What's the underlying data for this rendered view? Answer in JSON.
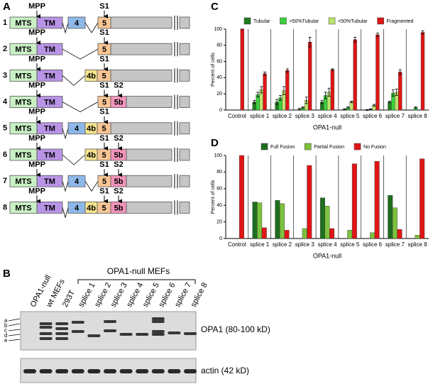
{
  "panel_a": {
    "panel_label": "A",
    "rows": [
      {
        "number": "1",
        "exons": [
          {
            "label": "MTS",
            "color": "#c9f0c4"
          },
          {
            "label": "TM",
            "color": "#b994e6"
          },
          {
            "label": "4",
            "color": "#8fb8ea"
          },
          {
            "label": "5",
            "color": "#f7c594"
          }
        ],
        "sites": [
          "MPP",
          "S1"
        ]
      },
      {
        "number": "2",
        "exons": [
          {
            "label": "MTS",
            "color": "#c9f0c4"
          },
          {
            "label": "TM",
            "color": "#b994e6"
          },
          {
            "label": "5",
            "color": "#f7c594"
          }
        ],
        "sites": [
          "MPP",
          "S1"
        ]
      },
      {
        "number": "3",
        "exons": [
          {
            "label": "MTS",
            "color": "#c9f0c4"
          },
          {
            "label": "TM",
            "color": "#b994e6"
          },
          {
            "label": "4b",
            "color": "#f6e58f"
          },
          {
            "label": "5",
            "color": "#f7c594"
          }
        ],
        "sites": [
          "MPP",
          "S1"
        ]
      },
      {
        "number": "4",
        "exons": [
          {
            "label": "MTS",
            "color": "#c9f0c4"
          },
          {
            "label": "TM",
            "color": "#b994e6"
          },
          {
            "label": "5",
            "color": "#f7c594"
          },
          {
            "label": "5b",
            "color": "#f294bb"
          }
        ],
        "sites": [
          "MPP",
          "S1",
          "S2"
        ]
      },
      {
        "number": "5",
        "exons": [
          {
            "label": "MTS",
            "color": "#c9f0c4"
          },
          {
            "label": "TM",
            "color": "#b994e6"
          },
          {
            "label": "4",
            "color": "#8fb8ea"
          },
          {
            "label": "4b",
            "color": "#f6e58f"
          },
          {
            "label": "5",
            "color": "#f7c594"
          }
        ],
        "sites": [
          "MPP",
          "S1"
        ]
      },
      {
        "number": "6",
        "exons": [
          {
            "label": "MTS",
            "color": "#c9f0c4"
          },
          {
            "label": "TM",
            "color": "#b994e6"
          },
          {
            "label": "4b",
            "color": "#f6e58f"
          },
          {
            "label": "5",
            "color": "#f7c594"
          },
          {
            "label": "5b",
            "color": "#f294bb"
          }
        ],
        "sites": [
          "MPP",
          "S1",
          "S2"
        ]
      },
      {
        "number": "7",
        "exons": [
          {
            "label": "MTS",
            "color": "#c9f0c4"
          },
          {
            "label": "TM",
            "color": "#b994e6"
          },
          {
            "label": "4",
            "color": "#8fb8ea"
          },
          {
            "label": "5",
            "color": "#f7c594"
          },
          {
            "label": "5b",
            "color": "#f294bb"
          }
        ],
        "sites": [
          "MPP",
          "S1",
          "S2"
        ]
      },
      {
        "number": "8",
        "exons": [
          {
            "label": "MTS",
            "color": "#c9f0c4"
          },
          {
            "label": "TM",
            "color": "#b994e6"
          },
          {
            "label": "4",
            "color": "#8fb8ea"
          },
          {
            "label": "4b",
            "color": "#f6e58f"
          },
          {
            "label": "5",
            "color": "#f7c594"
          },
          {
            "label": "5b",
            "color": "#f294bb"
          }
        ],
        "sites": [
          "MPP",
          "S1",
          "S2"
        ]
      }
    ]
  },
  "panel_b": {
    "panel_label": "B",
    "group_label": "OPA1-null MEFs",
    "lanes": [
      "OPA1-null",
      "wt MEFs",
      "293T",
      "splice 1",
      "splice 2",
      "splice 3",
      "splice 4",
      "splice 5",
      "splice 6",
      "splice 7",
      "splice 8"
    ],
    "band_letters": [
      "a",
      "b",
      "c",
      "d",
      "e"
    ],
    "blots": [
      "OPA1 (80-100 kD)",
      "actin (42 kD)"
    ]
  },
  "chart_data": [
    {
      "type": "bar",
      "panel_label": "C",
      "y_label": "Percent of cells",
      "x_label": "OPA1-null",
      "categories": [
        "Control",
        "splice 1",
        "splice 2",
        "splice 3",
        "splice 4",
        "splice 5",
        "splice 6",
        "splice 7",
        "splice 8"
      ],
      "series": [
        {
          "name": "Tubular",
          "color": "#1f7d1f",
          "values": [
            0,
            10,
            10,
            1,
            10,
            1,
            0,
            10,
            0
          ],
          "errors": [
            0,
            2,
            3,
            1,
            2,
            0.5,
            0.5,
            1,
            0
          ]
        },
        {
          "name": ">50%Tubular",
          "color": "#3ad13a",
          "values": [
            0,
            19,
            15,
            3,
            18,
            3,
            1,
            21,
            3
          ],
          "errors": [
            0,
            3,
            3,
            1,
            4,
            1,
            0.5,
            4,
            1
          ]
        },
        {
          "name": "<50%Tubular",
          "color": "#bde36f",
          "values": [
            0,
            25,
            24,
            12,
            22,
            10,
            6,
            22,
            0
          ],
          "errors": [
            0,
            4,
            5,
            4,
            5,
            1,
            1,
            4,
            0
          ]
        },
        {
          "name": "Fragmented",
          "color": "#e01515",
          "values": [
            100,
            45,
            49,
            84,
            50,
            87,
            93,
            47,
            96
          ],
          "errors": [
            0,
            2,
            2,
            6,
            1,
            3,
            2,
            3,
            2
          ]
        }
      ],
      "ylim": [
        0,
        100
      ],
      "yticks": [
        0,
        20,
        40,
        60,
        80,
        100
      ]
    },
    {
      "type": "bar",
      "panel_label": "D",
      "y_label": "Percent of cells",
      "x_label": "OPA1-null",
      "categories": [
        "Control",
        "splice 1",
        "splice 2",
        "splice 3",
        "splice 4",
        "splice 5",
        "splice 6",
        "splice 7",
        "splice 8"
      ],
      "series": [
        {
          "name": "Full Fusion",
          "color": "#1f6e1f",
          "values": [
            0,
            44,
            46,
            0,
            49,
            0,
            0,
            52,
            0
          ]
        },
        {
          "name": "Partial Fusion",
          "color": "#7dc23d",
          "values": [
            0,
            43,
            42,
            12,
            39,
            10,
            7,
            37,
            4
          ]
        },
        {
          "name": "No Fusion",
          "color": "#e01515",
          "values": [
            100,
            13,
            10,
            88,
            12,
            90,
            93,
            11,
            96
          ]
        }
      ],
      "ylim": [
        0,
        100
      ],
      "yticks": [
        0,
        20,
        40,
        60,
        80,
        100
      ]
    }
  ]
}
